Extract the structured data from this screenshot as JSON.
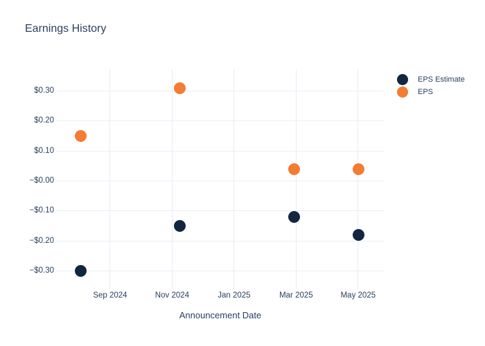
{
  "colors": {
    "background": "#ffffff",
    "title_text": "#2a3f5f",
    "tick_text": "#2a3f5f",
    "grid": "#e9eef7",
    "eps_estimate": "#13263f",
    "eps": "#f47c33"
  },
  "chart_data": {
    "type": "scatter",
    "title": "Earnings History",
    "xlabel": "Announcement Date",
    "ylabel": "",
    "grid": true,
    "legend_position": "top-right",
    "marker_diameter_px": 17,
    "x_axis": {
      "tick_labels": [
        "Sep 2024",
        "Nov 2024",
        "Jan 2025",
        "Mar 2025",
        "May 2025"
      ],
      "tick_positions_months_from_sep2024": [
        0,
        2,
        4,
        6,
        8
      ],
      "range_months": [
        -1.72,
        8.83
      ]
    },
    "y_axis": {
      "tick_labels": [
        "$0.30",
        "$0.20",
        "$0.10",
        "−$0.00",
        "−$0.10",
        "−$0.20",
        "−$0.30"
      ],
      "tick_values": [
        0.3,
        0.2,
        0.1,
        0.0,
        -0.1,
        -0.2,
        -0.3
      ],
      "range": [
        -0.347,
        0.373
      ]
    },
    "series": [
      {
        "name": "EPS Estimate",
        "color": "#13263f",
        "x_months_from_sep2024": [
          -0.96,
          2.25,
          5.93,
          8.01
        ],
        "announce_period_est": [
          "Aug 2024",
          "Nov 2024",
          "Feb–Mar 2025",
          "May 2025"
        ],
        "values": [
          -0.3,
          -0.15,
          -0.12,
          -0.18
        ]
      },
      {
        "name": "EPS",
        "color": "#f47c33",
        "x_months_from_sep2024": [
          -0.96,
          2.25,
          5.93,
          8.01
        ],
        "announce_period_est": [
          "Aug 2024",
          "Nov 2024",
          "Feb–Mar 2025",
          "May 2025"
        ],
        "values": [
          0.15,
          0.31,
          0.04,
          0.04
        ]
      }
    ]
  }
}
